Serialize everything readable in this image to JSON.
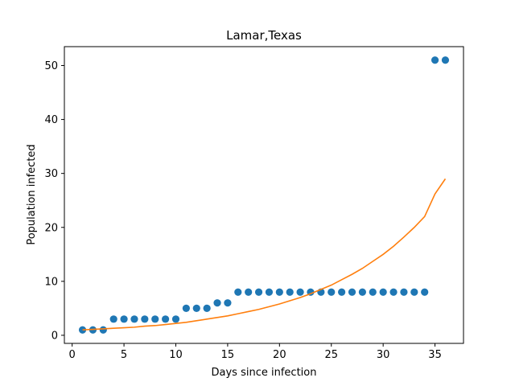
{
  "chart_data": {
    "type": "scatter",
    "title": "Lamar,Texas",
    "xlabel": "Days since infection",
    "ylabel": "Population infected",
    "xlim": [
      -0.75,
      37.75
    ],
    "ylim": [
      -1.5,
      53.5
    ],
    "xticks": [
      0,
      5,
      10,
      15,
      20,
      25,
      30,
      35
    ],
    "yticks": [
      0,
      10,
      20,
      30,
      40,
      50
    ],
    "grid": false,
    "series": [
      {
        "kind": "scatter",
        "color": "#1f77b4",
        "x": [
          1,
          2,
          3,
          4,
          5,
          6,
          7,
          8,
          9,
          10,
          11,
          12,
          13,
          14,
          15,
          16,
          17,
          18,
          19,
          20,
          21,
          22,
          23,
          24,
          25,
          26,
          27,
          28,
          29,
          30,
          31,
          32,
          33,
          34,
          35,
          36
        ],
        "y": [
          1,
          1,
          1,
          3,
          3,
          3,
          3,
          3,
          3,
          3,
          5,
          5,
          5,
          6,
          6,
          8,
          8,
          8,
          8,
          8,
          8,
          8,
          8,
          8,
          8,
          8,
          8,
          8,
          8,
          8,
          8,
          8,
          8,
          8,
          51,
          51
        ]
      },
      {
        "kind": "line",
        "color": "#ff7f0e",
        "x": [
          1,
          2,
          3,
          4,
          5,
          6,
          7,
          8,
          9,
          10,
          11,
          12,
          13,
          14,
          15,
          16,
          17,
          18,
          19,
          20,
          21,
          22,
          23,
          24,
          25,
          26,
          27,
          28,
          29,
          30,
          31,
          32,
          33,
          34,
          35,
          36
        ],
        "y": [
          1.0,
          1.1,
          1.2,
          1.3,
          1.4,
          1.5,
          1.7,
          1.8,
          2.0,
          2.2,
          2.4,
          2.7,
          3.0,
          3.3,
          3.6,
          4.0,
          4.4,
          4.8,
          5.3,
          5.8,
          6.4,
          7.0,
          7.7,
          8.5,
          9.3,
          10.3,
          11.3,
          12.4,
          13.7,
          15.0,
          16.5,
          18.2,
          20.0,
          22.0,
          26.2,
          29.0
        ]
      }
    ]
  }
}
